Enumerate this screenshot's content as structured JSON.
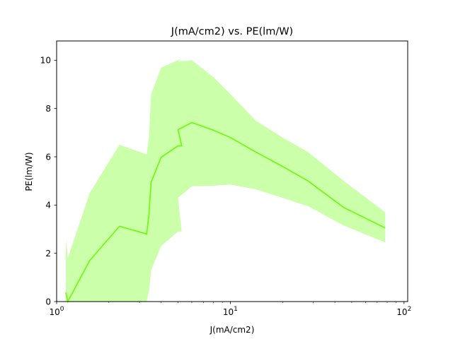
{
  "chart_data": {
    "type": "line",
    "title": "J(mA/cm2) vs. PE(lm/W)",
    "xlabel": "J(mA/cm2)",
    "ylabel": "PE(lm/W)",
    "xscale": "log",
    "xlim": [
      1,
      105
    ],
    "ylim": [
      0,
      10.8
    ],
    "x_ticks": [
      {
        "value": 1,
        "base": "10",
        "exp": "0"
      },
      {
        "value": 10,
        "base": "10",
        "exp": "1"
      },
      {
        "value": 100,
        "base": "10",
        "exp": "2"
      }
    ],
    "y_ticks": [
      0,
      2,
      4,
      6,
      8,
      10
    ],
    "grid": false,
    "colors": {
      "line": "#66ff00",
      "band": "#ccffaa"
    },
    "series": [
      {
        "x": [
          1.13,
          1.16,
          1.55,
          2.3,
          3.3,
          3.4,
          3.5,
          4.0,
          5.0,
          5.25,
          5.0,
          6.0,
          8.0,
          10.0,
          14.0,
          20.0,
          28.0,
          45.0,
          78.0
        ],
        "y": [
          0.38,
          0.0,
          1.7,
          3.12,
          2.8,
          3.6,
          4.95,
          5.98,
          6.45,
          6.45,
          7.12,
          7.42,
          7.1,
          6.8,
          6.2,
          5.6,
          5.0,
          3.9,
          3.05
        ],
        "upper": [
          2.6,
          1.8,
          4.5,
          6.5,
          6.1,
          6.8,
          8.6,
          9.7,
          10.0,
          10.05,
          9.95,
          10.0,
          9.3,
          8.6,
          7.5,
          6.8,
          6.2,
          5.0,
          3.7
        ],
        "lower": [
          0.0,
          0.0,
          0.0,
          0.0,
          0.0,
          0.4,
          1.3,
          2.3,
          2.9,
          2.9,
          4.3,
          4.78,
          4.8,
          4.85,
          4.65,
          4.3,
          3.95,
          3.15,
          2.45
        ]
      }
    ]
  }
}
